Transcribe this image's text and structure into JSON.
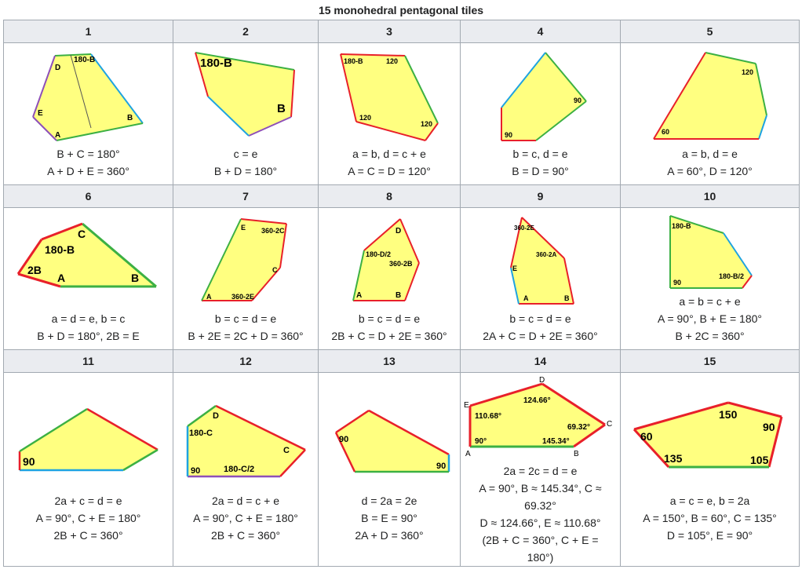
{
  "caption": "15 monohedral pentagonal tiles",
  "colors": {
    "fill": "#ffff80",
    "red": "#e8202a",
    "green": "#3cb043",
    "blue": "#1fa3e0",
    "purple": "#8e4fb8",
    "header_bg": "#eaecf0",
    "border": "#a2a9b1"
  },
  "tiles": [
    {
      "n": "1",
      "lines": [
        "B + C = 180°",
        "A + D + E = 360°"
      ]
    },
    {
      "n": "2",
      "lines": [
        "c = e",
        "B + D = 180°"
      ]
    },
    {
      "n": "3",
      "lines": [
        "a = b, d = c + e",
        "A = C = D = 120°"
      ]
    },
    {
      "n": "4",
      "lines": [
        "b = c, d = e",
        "B = D = 90°"
      ]
    },
    {
      "n": "5",
      "lines": [
        "a = b, d = e",
        "A = 60°, D = 120°"
      ]
    },
    {
      "n": "6",
      "lines": [
        "a = d = e, b = c",
        "B + D = 180°, 2B = E"
      ]
    },
    {
      "n": "7",
      "lines": [
        "b = c = d = e",
        "B + 2E = 2C + D = 360°"
      ]
    },
    {
      "n": "8",
      "lines": [
        "b = c = d = e",
        "2B + C = D + 2E = 360°"
      ]
    },
    {
      "n": "9",
      "lines": [
        "b = c = d = e",
        "2A + C = D + 2E = 360°"
      ]
    },
    {
      "n": "10",
      "lines": [
        "a = b = c + e",
        "A = 90°, B + E = 180°",
        "B + 2C = 360°"
      ]
    },
    {
      "n": "11",
      "lines": [
        "2a + c = d = e",
        "A = 90°, C + E = 180°",
        "2B + C = 360°"
      ]
    },
    {
      "n": "12",
      "lines": [
        "2a = d = c + e",
        "A = 90°, C + E = 180°",
        "2B + C = 360°"
      ]
    },
    {
      "n": "13",
      "lines": [
        "d = 2a = 2e",
        "B = E = 90°",
        "2A + D = 360°"
      ]
    },
    {
      "n": "14",
      "lines": [
        "2a = 2c = d = e",
        "A = 90°, B ≈ 145.34°, C ≈",
        "69.32°",
        "D ≈ 124.66°, E ≈ 110.68°",
        "(2B + C = 360°, C + E =",
        "180°)"
      ]
    },
    {
      "n": "15",
      "lines": [
        "a = c = e, b = 2a",
        "A = 150°, B = 60°, C = 135°",
        "D = 105°, E = 90°"
      ]
    }
  ],
  "figs": {
    "t1": {
      "labels": [
        "180-B",
        "D",
        "E",
        "A",
        "B"
      ]
    },
    "t2": {
      "labels": [
        "180-B",
        "B"
      ]
    },
    "t3": {
      "labels": [
        "180-B",
        "120",
        "120",
        "120"
      ]
    },
    "t4": {
      "labels": [
        "90",
        "90"
      ]
    },
    "t5": {
      "labels": [
        "120",
        "60"
      ]
    },
    "t6": {
      "labels": [
        "C",
        "180-B",
        "2B",
        "A",
        "B"
      ]
    },
    "t7": {
      "labels": [
        "E",
        "360-2C",
        "C",
        "A",
        "360-2E"
      ]
    },
    "t8": {
      "labels": [
        "D",
        "180-D/2",
        "360-2B",
        "A",
        "B"
      ]
    },
    "t9": {
      "labels": [
        "360-2E",
        "360-2A",
        "E",
        "A",
        "B"
      ]
    },
    "t10": {
      "labels": [
        "180-B",
        "90",
        "180-B/2"
      ]
    },
    "t11": {
      "labels": [
        "90"
      ]
    },
    "t12": {
      "labels": [
        "D",
        "180-C",
        "C",
        "90",
        "180-C/2"
      ]
    },
    "t13": {
      "labels": [
        "90",
        "90"
      ]
    },
    "t14": {
      "labels": [
        "D",
        "E",
        "124.66°",
        "110.68°",
        "69.32°",
        "90°",
        "145.34°",
        "A",
        "B",
        "C"
      ]
    },
    "t15": {
      "labels": [
        "150",
        "90",
        "60",
        "135",
        "105"
      ]
    }
  }
}
